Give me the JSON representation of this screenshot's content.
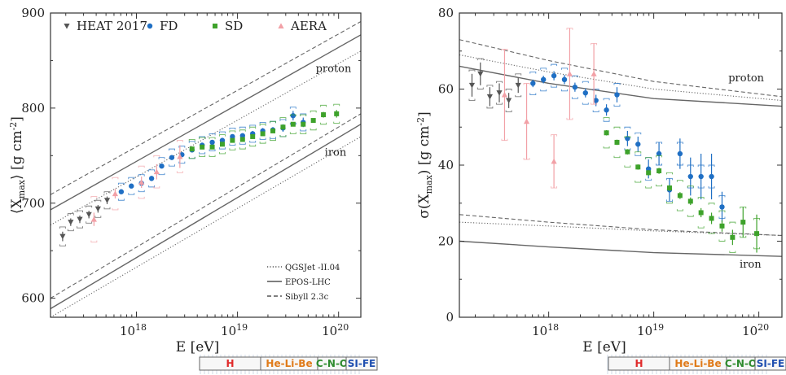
{
  "colors": {
    "heat": "#555555",
    "fd": "#1f6fc4",
    "sd": "#3ea22b",
    "aera": "#f2a0a6",
    "model": "#666666"
  },
  "chart_data": [
    {
      "type": "scatter",
      "xlabel": "E [eV]",
      "ylabel": "⟨X_max⟩ [g cm^-2]",
      "xscale": "log",
      "xlim": [
        17.15,
        20.22
      ],
      "ylim": [
        580,
        900
      ],
      "yticks": [
        "600",
        "700",
        "800",
        "900"
      ],
      "xticks": [
        {
          "value": 18,
          "label": "10^18"
        },
        {
          "value": 19,
          "label": "10^19"
        },
        {
          "value": 20,
          "label": "10^20"
        }
      ],
      "legend": {
        "position": "top-left",
        "entries": [
          {
            "label": "HEAT 2017",
            "marker": "triangle-down",
            "color": "#555555"
          },
          {
            "label": "FD",
            "marker": "circle",
            "color": "#1f6fc4"
          },
          {
            "label": "SD",
            "marker": "square",
            "color": "#3ea22b"
          },
          {
            "label": "AERA",
            "marker": "triangle-up",
            "color": "#f2a0a6"
          }
        ]
      },
      "model_legend": {
        "position": "bottom-right",
        "entries": [
          {
            "label": "QGSJet -II.04",
            "style": "dotted"
          },
          {
            "label": "EPOS-LHC",
            "style": "solid"
          },
          {
            "label": "Sibyll 2.3c",
            "style": "dashed"
          }
        ]
      },
      "annotations": [
        {
          "text": "proton",
          "x": 19.95,
          "y": 838
        },
        {
          "text": "iron",
          "x": 19.97,
          "y": 750
        }
      ],
      "models": {
        "proton": [
          {
            "style": "solid",
            "x": [
              17.15,
              20.22
            ],
            "y": [
              693,
              877
            ]
          },
          {
            "style": "dashed",
            "x": [
              17.15,
              20.22
            ],
            "y": [
              709,
              891
            ]
          },
          {
            "style": "dotted",
            "x": [
              17.15,
              20.22
            ],
            "y": [
              677,
              860
            ]
          }
        ],
        "iron": [
          {
            "style": "solid",
            "x": [
              17.15,
              20.22
            ],
            "y": [
              589,
              783
            ]
          },
          {
            "style": "dashed",
            "x": [
              17.15,
              20.22
            ],
            "y": [
              600,
              794
            ]
          },
          {
            "style": "dotted",
            "x": [
              17.15,
              20.22
            ],
            "y": [
              580,
              770
            ]
          }
        ]
      },
      "series": [
        {
          "name": "HEAT 2017",
          "marker": "triangle-down",
          "x": [
            17.27,
            17.35,
            17.44,
            17.53,
            17.62,
            17.71
          ],
          "y": [
            665,
            680,
            683,
            688,
            694,
            703
          ],
          "err": [
            5,
            4,
            4,
            4,
            4,
            4
          ],
          "sys": [
            10,
            9,
            9,
            9,
            9,
            9
          ]
        },
        {
          "name": "FD",
          "marker": "circle",
          "x": [
            17.85,
            17.95,
            18.05,
            18.15,
            18.25,
            18.35,
            18.45,
            18.55,
            18.65,
            18.75,
            18.85,
            18.95,
            19.05,
            19.15,
            19.25,
            19.35,
            19.45,
            19.55,
            19.65
          ],
          "y": [
            712,
            718,
            721,
            726,
            739,
            748,
            751,
            756,
            761,
            764,
            766,
            770,
            771,
            773,
            776,
            777,
            779,
            792,
            785
          ],
          "err": [
            2,
            2,
            2,
            2,
            2,
            2,
            2,
            2,
            2,
            2,
            2,
            2,
            2,
            3,
            3,
            3,
            4,
            5,
            5
          ],
          "sys": [
            9,
            9,
            9,
            9,
            9,
            9,
            9,
            9,
            9,
            9,
            9,
            9,
            9,
            9,
            9,
            9,
            9,
            9,
            9
          ]
        },
        {
          "name": "SD",
          "marker": "square",
          "x": [
            18.55,
            18.65,
            18.75,
            18.85,
            18.95,
            19.05,
            19.15,
            19.25,
            19.35,
            19.45,
            19.55,
            19.65,
            19.75,
            19.85,
            19.98
          ],
          "y": [
            757,
            759,
            759,
            762,
            766,
            767,
            770,
            773,
            776,
            780,
            783,
            783,
            787,
            793,
            794
          ],
          "err": [
            1,
            1,
            1,
            1,
            1,
            1,
            1,
            1,
            1,
            2,
            2,
            2,
            2,
            3,
            4
          ],
          "sys": [
            10,
            10,
            10,
            10,
            10,
            10,
            10,
            10,
            10,
            10,
            10,
            10,
            10,
            10,
            10
          ]
        },
        {
          "name": "AERA",
          "marker": "triangle-up",
          "x": [
            17.58,
            17.79,
            18.05,
            18.2,
            18.43
          ],
          "y": [
            683,
            710,
            722,
            733,
            749
          ],
          "err": [
            7,
            5,
            6,
            8,
            12
          ],
          "sys": [
            24,
            17,
            17,
            17,
            17
          ]
        }
      ]
    },
    {
      "type": "scatter",
      "xlabel": "E [eV]",
      "ylabel": "σ(X_max) [g cm^-2]",
      "xscale": "log",
      "xlim": [
        17.15,
        20.22
      ],
      "ylim": [
        0,
        80
      ],
      "yticks": [
        "0",
        "20",
        "40",
        "60",
        "80"
      ],
      "xticks": [
        {
          "value": 18,
          "label": "10^18"
        },
        {
          "value": 19,
          "label": "10^19"
        },
        {
          "value": 20,
          "label": "10^20"
        }
      ],
      "annotations": [
        {
          "text": "proton",
          "x": 19.88,
          "y": 62
        },
        {
          "text": "iron",
          "x": 19.92,
          "y": 13
        }
      ],
      "models": {
        "proton": [
          {
            "style": "solid",
            "x": [
              17.15,
              18.0,
              19.0,
              20.22
            ],
            "y": [
              66,
              61.5,
              57.5,
              55.5
            ]
          },
          {
            "style": "dashed",
            "x": [
              17.15,
              18.0,
              19.0,
              20.22
            ],
            "y": [
              73,
              67.5,
              62,
              58
            ]
          },
          {
            "style": "dotted",
            "x": [
              17.15,
              18.0,
              19.0,
              20.22
            ],
            "y": [
              69,
              64.5,
              60,
              57
            ]
          }
        ],
        "iron": [
          {
            "style": "solid",
            "x": [
              17.15,
              18.0,
              19.0,
              20.22
            ],
            "y": [
              20,
              18.5,
              17,
              16
            ]
          },
          {
            "style": "dashed",
            "x": [
              17.15,
              18.0,
              19.0,
              20.22
            ],
            "y": [
              27,
              25,
              23,
              21.5
            ]
          },
          {
            "style": "dotted",
            "x": [
              17.15,
              18.0,
              19.0,
              20.22
            ],
            "y": [
              25,
              24,
              22.7,
              21.5
            ]
          }
        ]
      },
      "series": [
        {
          "name": "HEAT 2017",
          "marker": "triangle-down",
          "x": [
            17.27,
            17.35,
            17.44,
            17.53,
            17.62,
            17.71
          ],
          "y": [
            61,
            64,
            58,
            59,
            57,
            61
          ],
          "err": [
            3,
            3,
            2.5,
            2.5,
            2,
            2
          ],
          "sys": [
            4,
            4,
            3,
            3,
            3,
            3
          ]
        },
        {
          "name": "FD",
          "marker": "circle",
          "x": [
            17.85,
            17.95,
            18.05,
            18.15,
            18.25,
            18.35,
            18.45,
            18.55,
            18.65,
            18.75,
            18.85,
            18.95,
            19.05,
            19.15,
            19.25,
            19.35,
            19.45,
            19.55,
            19.65
          ],
          "y": [
            61.5,
            62.5,
            63.5,
            62.5,
            60.5,
            59,
            57,
            54.5,
            58.5,
            47,
            45.5,
            39,
            43,
            33.5,
            43,
            37,
            37,
            37,
            29
          ],
          "err": [
            1,
            1,
            1.2,
            1.2,
            1.2,
            1.2,
            1.5,
            1.5,
            2,
            2,
            2,
            2.5,
            3,
            3,
            4,
            5,
            6,
            6,
            4
          ],
          "sys": [
            3,
            3,
            3,
            3,
            3,
            3,
            3,
            3,
            3,
            3,
            3,
            3,
            3,
            3,
            3,
            3,
            3,
            3,
            3
          ]
        },
        {
          "name": "SD",
          "marker": "square",
          "x": [
            18.55,
            18.65,
            18.75,
            18.85,
            18.95,
            19.05,
            19.15,
            19.25,
            19.35,
            19.45,
            19.55,
            19.65,
            19.75,
            19.85,
            19.98
          ],
          "y": [
            48.5,
            46,
            43.5,
            39.5,
            38,
            38.5,
            34,
            32,
            30.5,
            27.5,
            26,
            24,
            21,
            25,
            22
          ],
          "err": [
            0.7,
            0.7,
            0.7,
            0.7,
            0.7,
            0.8,
            0.8,
            0.9,
            1,
            1.2,
            1.5,
            1.5,
            2,
            4,
            5
          ],
          "sys": [
            4,
            4,
            4,
            4,
            4,
            4,
            4,
            4,
            4,
            4,
            4,
            4,
            4,
            4,
            4
          ]
        },
        {
          "name": "AERA",
          "marker": "triangle-up",
          "x": [
            17.58,
            17.79,
            18.05,
            18.2,
            18.43
          ],
          "y": [
            58.5,
            51.5,
            41,
            64,
            64
          ],
          "err": [
            12,
            10,
            7,
            12,
            8
          ],
          "sys": [
            12,
            10,
            7,
            12,
            8
          ]
        }
      ]
    }
  ],
  "composition_bars": [
    {
      "segments": [
        {
          "label": "H",
          "color": "#e02a2a",
          "from": 17.15,
          "to": 18.0
        },
        {
          "label": "He-Li-Be",
          "color": "#e07b1a",
          "from": 18.0,
          "to": 18.6
        },
        {
          "label": "C-N-O",
          "color": "#2e8b2e",
          "from": 18.6,
          "to": 18.95
        },
        {
          "label": "SI-FE",
          "color": "#1f4fb0",
          "from": 18.95,
          "to": 19.45
        }
      ]
    },
    {
      "segments": [
        {
          "label": "H",
          "color": "#e02a2a",
          "from": 17.15,
          "to": 18.0
        },
        {
          "label": "He-Li-Be",
          "color": "#e07b1a",
          "from": 18.0,
          "to": 18.6
        },
        {
          "label": "C-N-O",
          "color": "#2e8b2e",
          "from": 18.6,
          "to": 18.95
        },
        {
          "label": "SI-FE",
          "color": "#1f4fb0",
          "from": 18.95,
          "to": 19.45
        }
      ]
    }
  ]
}
